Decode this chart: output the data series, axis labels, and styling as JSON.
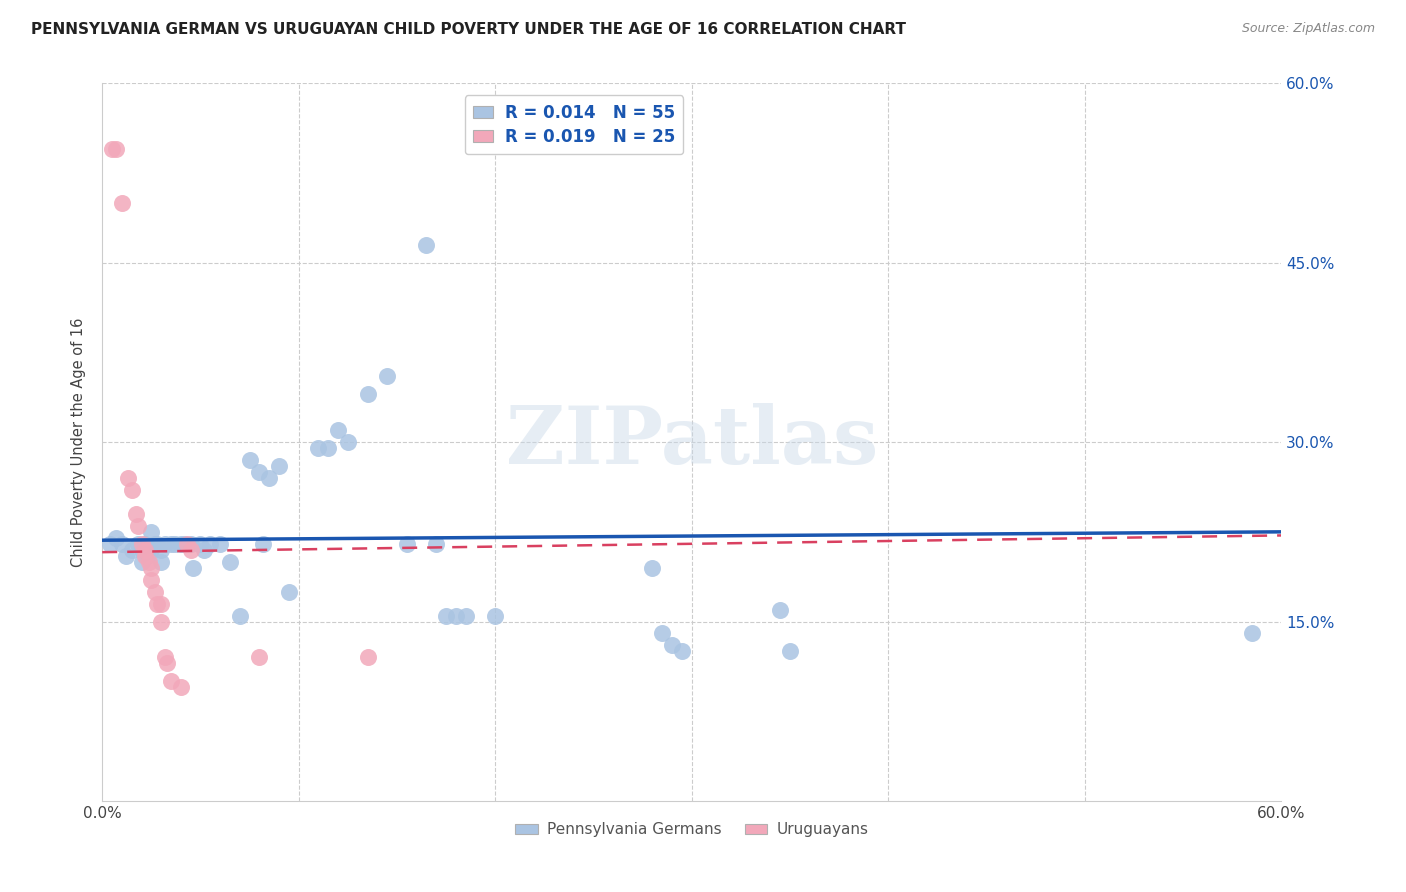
{
  "title": "PENNSYLVANIA GERMAN VS URUGUAYAN CHILD POVERTY UNDER THE AGE OF 16 CORRELATION CHART",
  "source": "Source: ZipAtlas.com",
  "ylabel": "Child Poverty Under the Age of 16",
  "xlim": [
    0.0,
    0.6
  ],
  "ylim": [
    0.0,
    0.6
  ],
  "blue_color": "#aac4e2",
  "pink_color": "#f2a8ba",
  "blue_line_color": "#1a56b0",
  "pink_line_color": "#d94060",
  "r_blue": "0.014",
  "n_blue": "55",
  "r_pink": "0.019",
  "n_pink": "25",
  "legend_label_blue": "Pennsylvania Germans",
  "legend_label_pink": "Uruguayans",
  "watermark": "ZIPatlas",
  "blue_points": [
    [
      0.004,
      0.215
    ],
    [
      0.007,
      0.22
    ],
    [
      0.01,
      0.215
    ],
    [
      0.012,
      0.205
    ],
    [
      0.015,
      0.21
    ],
    [
      0.018,
      0.215
    ],
    [
      0.02,
      0.21
    ],
    [
      0.02,
      0.2
    ],
    [
      0.022,
      0.215
    ],
    [
      0.023,
      0.205
    ],
    [
      0.025,
      0.225
    ],
    [
      0.025,
      0.21
    ],
    [
      0.027,
      0.215
    ],
    [
      0.028,
      0.215
    ],
    [
      0.03,
      0.21
    ],
    [
      0.03,
      0.2
    ],
    [
      0.032,
      0.215
    ],
    [
      0.035,
      0.215
    ],
    [
      0.037,
      0.215
    ],
    [
      0.04,
      0.215
    ],
    [
      0.042,
      0.215
    ],
    [
      0.045,
      0.215
    ],
    [
      0.046,
      0.195
    ],
    [
      0.05,
      0.215
    ],
    [
      0.052,
      0.21
    ],
    [
      0.055,
      0.215
    ],
    [
      0.06,
      0.215
    ],
    [
      0.065,
      0.2
    ],
    [
      0.07,
      0.155
    ],
    [
      0.075,
      0.285
    ],
    [
      0.08,
      0.275
    ],
    [
      0.082,
      0.215
    ],
    [
      0.085,
      0.27
    ],
    [
      0.09,
      0.28
    ],
    [
      0.095,
      0.175
    ],
    [
      0.11,
      0.295
    ],
    [
      0.115,
      0.295
    ],
    [
      0.12,
      0.31
    ],
    [
      0.125,
      0.3
    ],
    [
      0.135,
      0.34
    ],
    [
      0.145,
      0.355
    ],
    [
      0.155,
      0.215
    ],
    [
      0.165,
      0.465
    ],
    [
      0.17,
      0.215
    ],
    [
      0.175,
      0.155
    ],
    [
      0.18,
      0.155
    ],
    [
      0.185,
      0.155
    ],
    [
      0.2,
      0.155
    ],
    [
      0.28,
      0.195
    ],
    [
      0.285,
      0.14
    ],
    [
      0.29,
      0.13
    ],
    [
      0.295,
      0.125
    ],
    [
      0.345,
      0.16
    ],
    [
      0.35,
      0.125
    ],
    [
      0.585,
      0.14
    ]
  ],
  "pink_points": [
    [
      0.005,
      0.545
    ],
    [
      0.007,
      0.545
    ],
    [
      0.01,
      0.5
    ],
    [
      0.013,
      0.27
    ],
    [
      0.015,
      0.26
    ],
    [
      0.017,
      0.24
    ],
    [
      0.018,
      0.23
    ],
    [
      0.02,
      0.215
    ],
    [
      0.022,
      0.21
    ],
    [
      0.022,
      0.205
    ],
    [
      0.024,
      0.2
    ],
    [
      0.025,
      0.195
    ],
    [
      0.025,
      0.185
    ],
    [
      0.027,
      0.175
    ],
    [
      0.028,
      0.165
    ],
    [
      0.03,
      0.165
    ],
    [
      0.03,
      0.15
    ],
    [
      0.032,
      0.12
    ],
    [
      0.033,
      0.115
    ],
    [
      0.035,
      0.1
    ],
    [
      0.04,
      0.095
    ],
    [
      0.043,
      0.215
    ],
    [
      0.045,
      0.21
    ],
    [
      0.08,
      0.12
    ],
    [
      0.135,
      0.12
    ]
  ],
  "blue_line_x": [
    0.0,
    0.6
  ],
  "blue_line_y": [
    0.218,
    0.225
  ],
  "pink_line_x": [
    0.0,
    0.6
  ],
  "pink_line_y": [
    0.208,
    0.222
  ]
}
